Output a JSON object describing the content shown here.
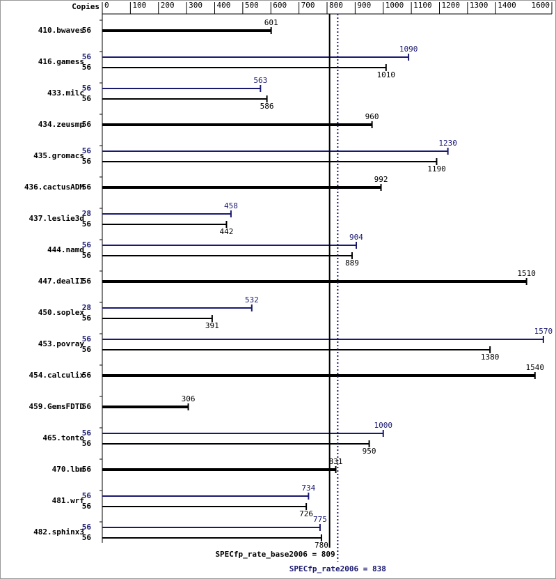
{
  "chart_data": {
    "type": "bar",
    "orientation": "horizontal",
    "copies_label": "Copies",
    "xlim": [
      0,
      1600
    ],
    "xticks": [
      0,
      100,
      200,
      300,
      400,
      500,
      600,
      700,
      800,
      900,
      1000,
      1100,
      1200,
      1300,
      1400,
      1600
    ],
    "base_color": "#000000",
    "peak_color": "#191970",
    "rows": [
      {
        "name": "410.bwaves",
        "base": {
          "copies": 56,
          "value": 601
        }
      },
      {
        "name": "416.gamess",
        "peak": {
          "copies": 56,
          "value": 1090
        },
        "base": {
          "copies": 56,
          "value": 1010
        }
      },
      {
        "name": "433.milc",
        "peak": {
          "copies": 56,
          "value": 563
        },
        "base": {
          "copies": 56,
          "value": 586
        }
      },
      {
        "name": "434.zeusmp",
        "base": {
          "copies": 56,
          "value": 960
        }
      },
      {
        "name": "435.gromacs",
        "peak": {
          "copies": 56,
          "value": 1230
        },
        "base": {
          "copies": 56,
          "value": 1190
        }
      },
      {
        "name": "436.cactusADM",
        "base": {
          "copies": 56,
          "value": 992
        }
      },
      {
        "name": "437.leslie3d",
        "peak": {
          "copies": 28,
          "value": 458
        },
        "base": {
          "copies": 56,
          "value": 442
        }
      },
      {
        "name": "444.namd",
        "peak": {
          "copies": 56,
          "value": 904
        },
        "base": {
          "copies": 56,
          "value": 889
        }
      },
      {
        "name": "447.dealII",
        "base": {
          "copies": 56,
          "value": 1510
        }
      },
      {
        "name": "450.soplex",
        "peak": {
          "copies": 28,
          "value": 532
        },
        "base": {
          "copies": 56,
          "value": 391
        }
      },
      {
        "name": "453.povray",
        "peak": {
          "copies": 56,
          "value": 1570
        },
        "base": {
          "copies": 56,
          "value": 1380
        }
      },
      {
        "name": "454.calculix",
        "base": {
          "copies": 56,
          "value": 1540
        }
      },
      {
        "name": "459.GemsFDTD",
        "base": {
          "copies": 56,
          "value": 306
        }
      },
      {
        "name": "465.tonto",
        "peak": {
          "copies": 56,
          "value": 1000
        },
        "base": {
          "copies": 56,
          "value": 950
        }
      },
      {
        "name": "470.lbm",
        "base": {
          "copies": 56,
          "value": 831
        }
      },
      {
        "name": "481.wrf",
        "peak": {
          "copies": 56,
          "value": 734
        },
        "base": {
          "copies": 56,
          "value": 726
        }
      },
      {
        "name": "482.sphinx3",
        "peak": {
          "copies": 56,
          "value": 775
        },
        "base": {
          "copies": 56,
          "value": 780
        }
      }
    ],
    "base_score": {
      "value": 809,
      "label": "SPECfp_rate_base2006 = 809"
    },
    "peak_score": {
      "value": 838,
      "label": "SPECfp_rate2006 = 838"
    }
  }
}
